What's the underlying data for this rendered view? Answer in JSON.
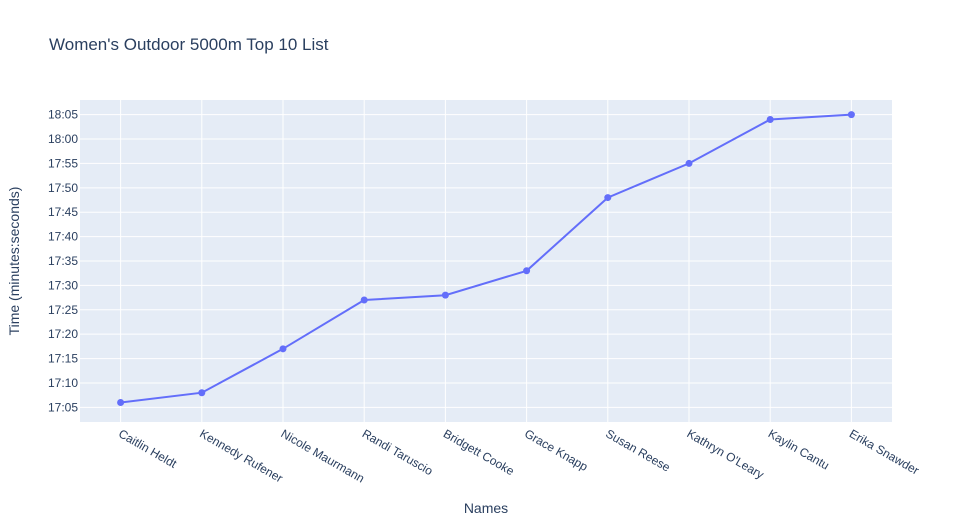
{
  "chart_data": {
    "type": "line",
    "title": "Women's Outdoor 5000m Top 10 List",
    "xlabel": "Names",
    "ylabel": "Time (minutes:seconds)",
    "categories": [
      "Caitlin Heldt",
      "Kennedy Rufener",
      "Nicole Maurmann",
      "Randi Taruscio",
      "Bridgett Cooke",
      "Grace Knapp",
      "Susan Reese",
      "Kathryn O'Leary",
      "Kaylin Cantu",
      "Erika Snawder"
    ],
    "values": [
      "17:06",
      "17:08",
      "17:17",
      "17:27",
      "17:28",
      "17:33",
      "17:48",
      "17:55",
      "18:04",
      "18:05"
    ],
    "y_ticks": [
      "17:05",
      "17:10",
      "17:15",
      "17:20",
      "17:25",
      "17:30",
      "17:35",
      "17:40",
      "17:45",
      "17:50",
      "17:55",
      "18:00",
      "18:05"
    ],
    "ylim": [
      "17:02",
      "18:08"
    ],
    "grid": true,
    "legend": "none",
    "colors": {
      "line": "#636efa",
      "plot_background": "#e5ecf6",
      "grid": "#ffffff",
      "text": "#2a3f5f"
    }
  }
}
